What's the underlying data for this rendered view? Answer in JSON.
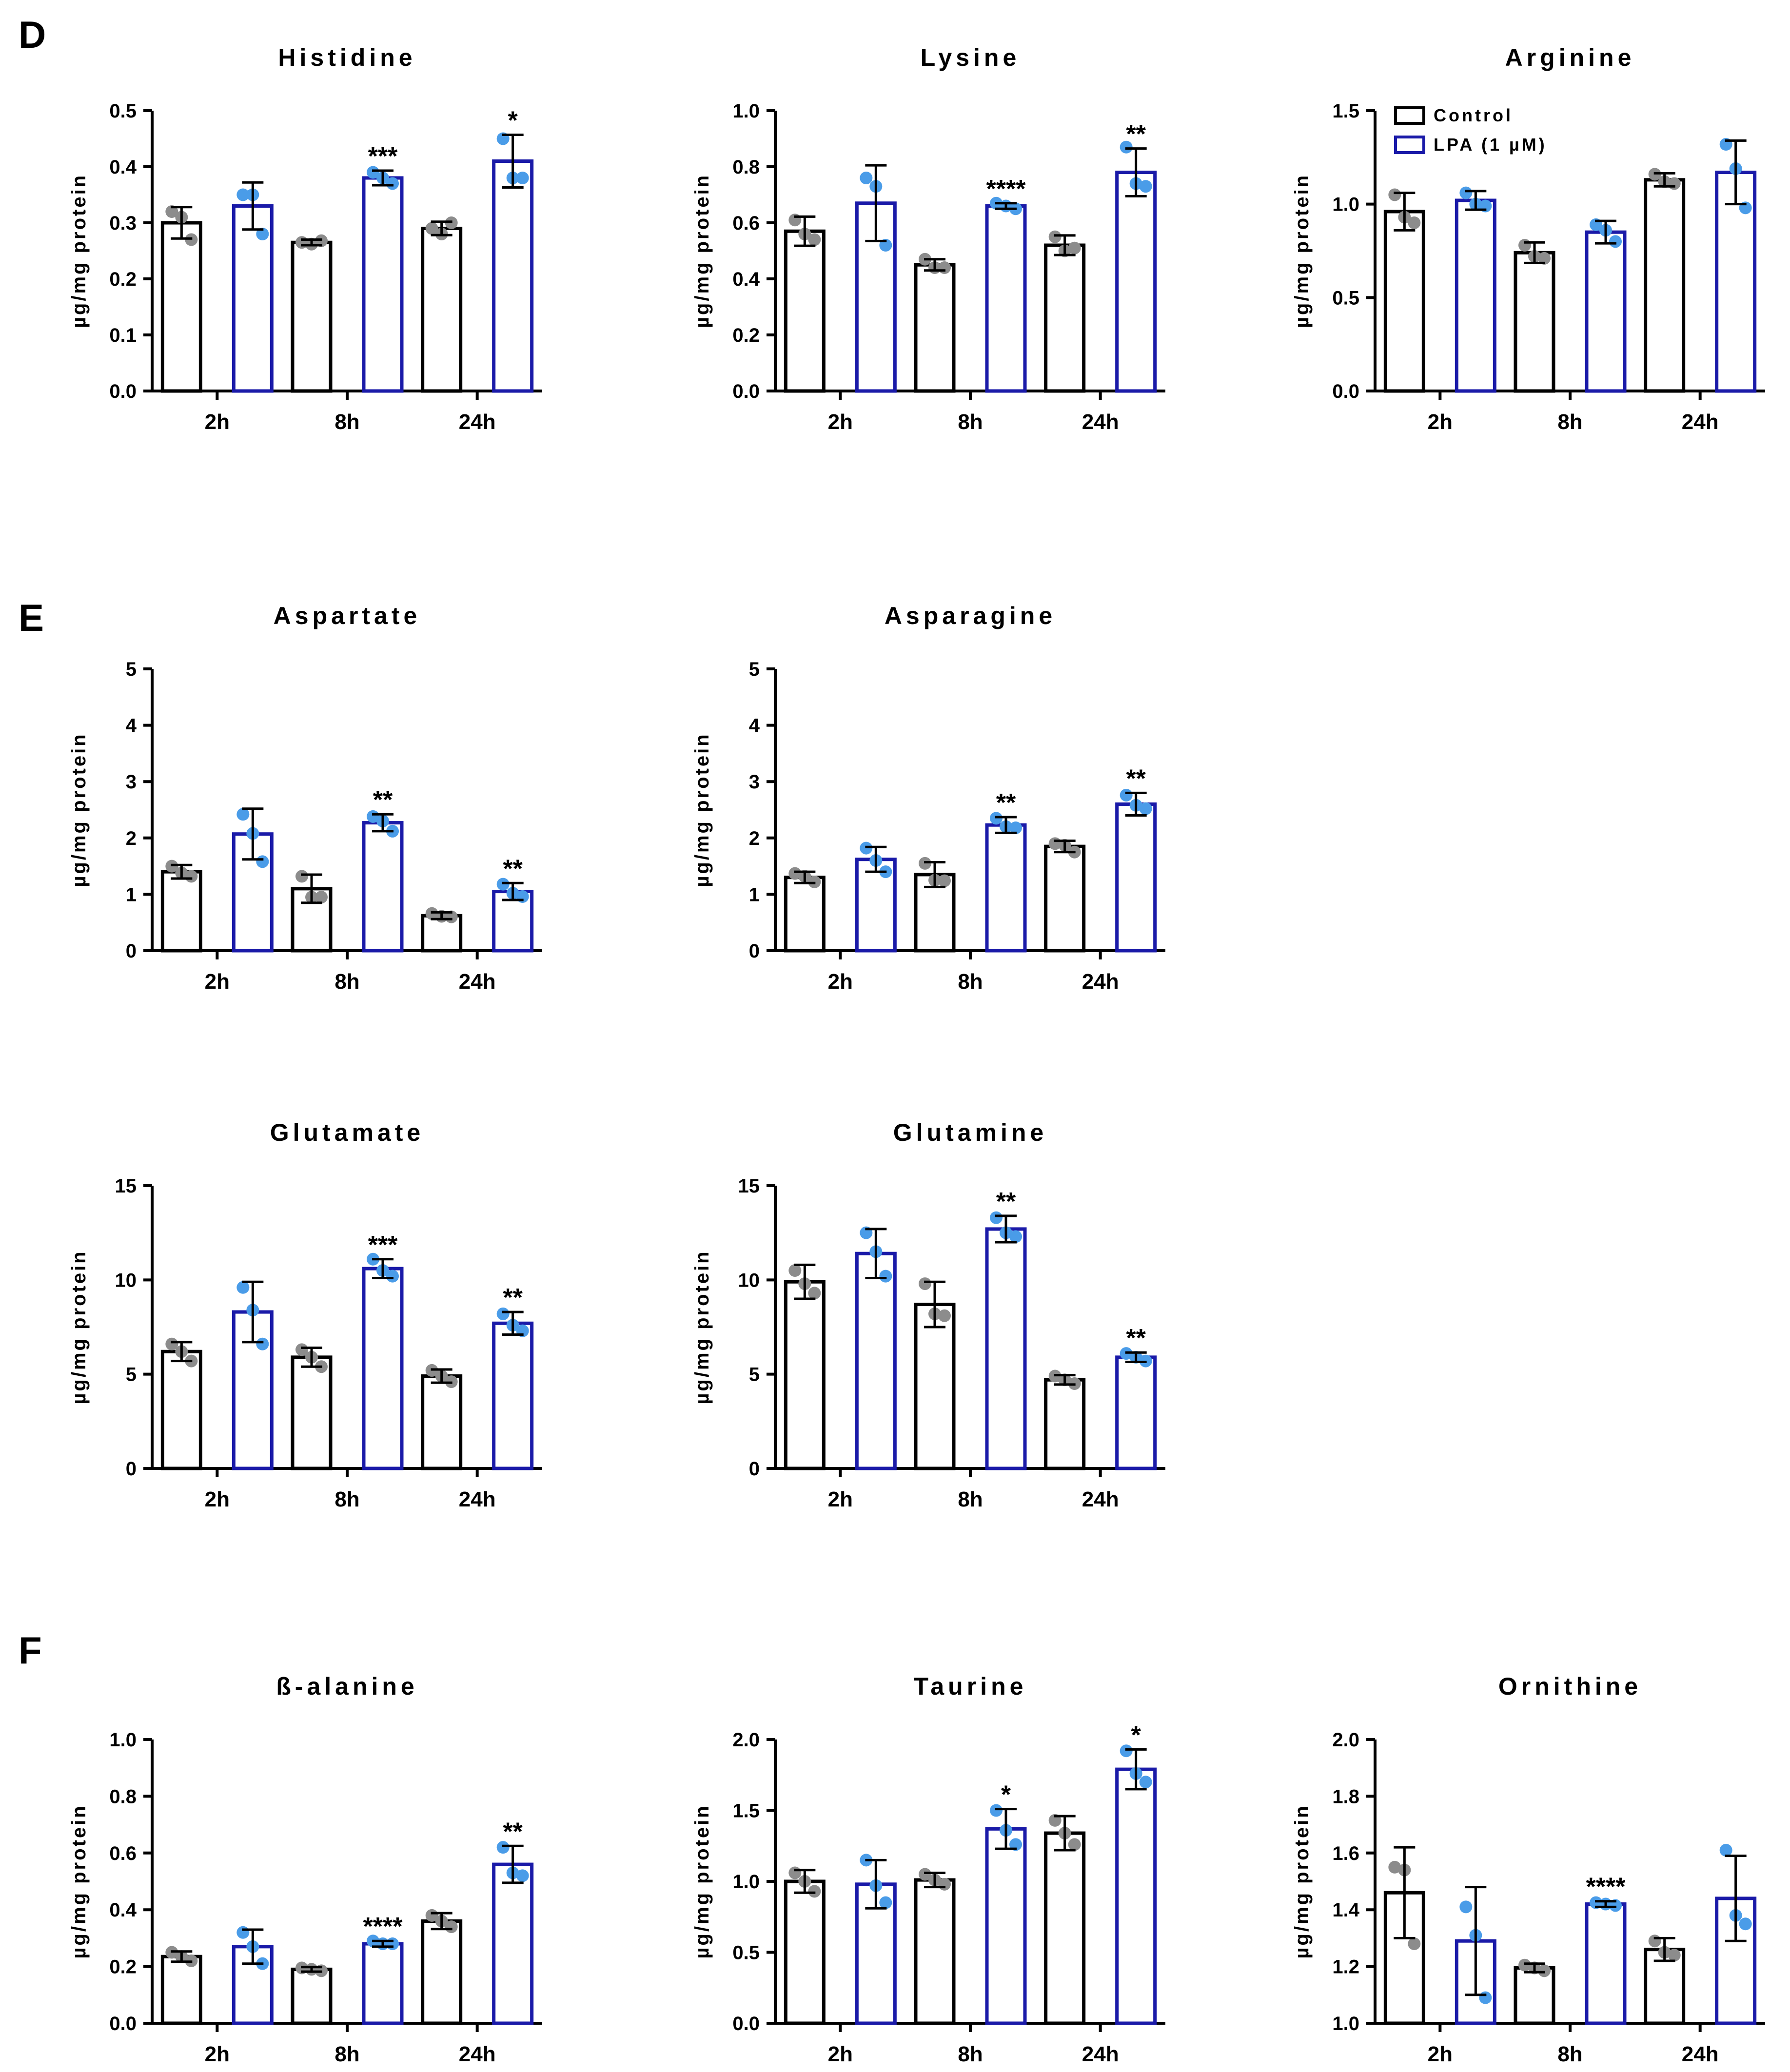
{
  "panels": [
    "D",
    "E",
    "F"
  ],
  "legend": {
    "entries": [
      {
        "label": "Control",
        "color": "#000000"
      },
      {
        "label": "LPA (1 µM)",
        "color": "#1a1aa8"
      }
    ]
  },
  "colors": {
    "control": "#000000",
    "lpa": "#1a1aa8",
    "control_dot": "#8c8c8c",
    "lpa_dot": "#4a9ce8",
    "text": "#000000"
  },
  "chart_data": [
    {
      "type": "bar",
      "panel": "D",
      "title": "Histidine",
      "ylabel": "µg/mg protein",
      "categories": [
        "2h",
        "8h",
        "24h"
      ],
      "ylim": [
        0,
        0.5
      ],
      "yticks": [
        "0.0",
        "0.1",
        "0.2",
        "0.3",
        "0.4",
        "0.5"
      ],
      "series": [
        {
          "name": "Control",
          "values": [
            0.3,
            0.265,
            0.29
          ],
          "errors": [
            0.028,
            0.005,
            0.012
          ],
          "points": [
            [
              0.32,
              0.31,
              0.27
            ],
            [
              0.265,
              0.262,
              0.268
            ],
            [
              0.29,
              0.28,
              0.3
            ]
          ]
        },
        {
          "name": "LPA (1 µM)",
          "values": [
            0.33,
            0.38,
            0.41
          ],
          "errors": [
            0.042,
            0.013,
            0.047
          ],
          "points": [
            [
              0.35,
              0.35,
              0.28
            ],
            [
              0.39,
              0.38,
              0.37
            ],
            [
              0.45,
              0.38,
              0.38
            ]
          ]
        }
      ],
      "significance": [
        "",
        "***",
        "*"
      ]
    },
    {
      "type": "bar",
      "panel": "D",
      "title": "Lysine",
      "ylabel": "µg/mg protein",
      "categories": [
        "2h",
        "8h",
        "24h"
      ],
      "ylim": [
        0,
        1.0
      ],
      "yticks": [
        "0.0",
        "0.2",
        "0.4",
        "0.6",
        "0.8",
        "1.0"
      ],
      "series": [
        {
          "name": "Control",
          "values": [
            0.57,
            0.45,
            0.52
          ],
          "errors": [
            0.052,
            0.02,
            0.035
          ],
          "points": [
            [
              0.61,
              0.56,
              0.54
            ],
            [
              0.47,
              0.44,
              0.44
            ],
            [
              0.55,
              0.5,
              0.51
            ]
          ]
        },
        {
          "name": "LPA (1 µM)",
          "values": [
            0.67,
            0.66,
            0.78
          ],
          "errors": [
            0.135,
            0.01,
            0.085
          ],
          "points": [
            [
              0.76,
              0.73,
              0.52
            ],
            [
              0.67,
              0.66,
              0.65
            ],
            [
              0.87,
              0.74,
              0.73
            ]
          ]
        }
      ],
      "significance": [
        "",
        "****",
        "**"
      ]
    },
    {
      "type": "bar",
      "panel": "D",
      "title": "Arginine",
      "ylabel": "µg/mg protein",
      "categories": [
        "2h",
        "8h",
        "24h"
      ],
      "ylim": [
        0,
        1.5
      ],
      "yticks": [
        "0.0",
        "0.5",
        "1.0",
        "1.5"
      ],
      "series": [
        {
          "name": "Control",
          "values": [
            0.96,
            0.74,
            1.13
          ],
          "errors": [
            0.1,
            0.055,
            0.035
          ],
          "points": [
            [
              1.05,
              0.93,
              0.9
            ],
            [
              0.78,
              0.72,
              0.71
            ],
            [
              1.16,
              1.12,
              1.11
            ]
          ]
        },
        {
          "name": "LPA (1 µM)",
          "values": [
            1.02,
            0.85,
            1.17
          ],
          "errors": [
            0.05,
            0.06,
            0.17
          ],
          "points": [
            [
              1.06,
              1.0,
              0.99
            ],
            [
              0.89,
              0.86,
              0.8
            ],
            [
              1.32,
              1.19,
              0.98
            ]
          ]
        }
      ],
      "significance": [
        "",
        "",
        ""
      ]
    },
    {
      "type": "bar",
      "panel": "E",
      "title": "Aspartate",
      "ylabel": "µg/mg protein",
      "categories": [
        "2h",
        "8h",
        "24h"
      ],
      "ylim": [
        0,
        5
      ],
      "yticks": [
        "0",
        "1",
        "2",
        "3",
        "4",
        "5"
      ],
      "series": [
        {
          "name": "Control",
          "values": [
            1.4,
            1.1,
            0.62
          ],
          "errors": [
            0.12,
            0.25,
            0.06
          ],
          "points": [
            [
              1.5,
              1.38,
              1.32
            ],
            [
              1.32,
              0.95,
              0.95
            ],
            [
              0.66,
              0.61,
              0.6
            ]
          ]
        },
        {
          "name": "LPA (1 µM)",
          "values": [
            2.07,
            2.27,
            1.05
          ],
          "errors": [
            0.45,
            0.15,
            0.15
          ],
          "points": [
            [
              2.42,
              2.08,
              1.58
            ],
            [
              2.38,
              2.3,
              2.12
            ],
            [
              1.18,
              1.02,
              0.96
            ]
          ]
        }
      ],
      "significance": [
        "",
        "**",
        "**"
      ]
    },
    {
      "type": "bar",
      "panel": "E",
      "title": "Asparagine",
      "ylabel": "µg/mg protein",
      "categories": [
        "2h",
        "8h",
        "24h"
      ],
      "ylim": [
        0,
        5
      ],
      "yticks": [
        "0",
        "1",
        "2",
        "3",
        "4",
        "5"
      ],
      "series": [
        {
          "name": "Control",
          "values": [
            1.3,
            1.35,
            1.85
          ],
          "errors": [
            0.1,
            0.22,
            0.1
          ],
          "points": [
            [
              1.37,
              1.32,
              1.22
            ],
            [
              1.55,
              1.25,
              1.24
            ],
            [
              1.9,
              1.87,
              1.75
            ]
          ]
        },
        {
          "name": "LPA (1 µM)",
          "values": [
            1.62,
            2.23,
            2.6
          ],
          "errors": [
            0.22,
            0.14,
            0.2
          ],
          "points": [
            [
              1.82,
              1.6,
              1.4
            ],
            [
              2.35,
              2.2,
              2.18
            ],
            [
              2.76,
              2.58,
              2.52
            ]
          ]
        }
      ],
      "significance": [
        "",
        "**",
        "**"
      ]
    },
    {
      "type": "bar",
      "panel": "E",
      "title": "Glutamate",
      "ylabel": "µg/mg protein",
      "categories": [
        "2h",
        "8h",
        "24h"
      ],
      "ylim": [
        0,
        15
      ],
      "yticks": [
        "0",
        "5",
        "10",
        "15"
      ],
      "series": [
        {
          "name": "Control",
          "values": [
            6.2,
            5.9,
            4.9
          ],
          "errors": [
            0.5,
            0.5,
            0.35
          ],
          "points": [
            [
              6.6,
              6.2,
              5.7
            ],
            [
              6.3,
              5.9,
              5.4
            ],
            [
              5.2,
              4.9,
              4.6
            ]
          ]
        },
        {
          "name": "LPA (1 µM)",
          "values": [
            8.3,
            10.6,
            7.7
          ],
          "errors": [
            1.6,
            0.5,
            0.6
          ],
          "points": [
            [
              9.6,
              8.4,
              6.6
            ],
            [
              11.1,
              10.5,
              10.2
            ],
            [
              8.2,
              7.6,
              7.3
            ]
          ]
        }
      ],
      "significance": [
        "",
        "***",
        "**"
      ]
    },
    {
      "type": "bar",
      "panel": "E",
      "title": "Glutamine",
      "ylabel": "µg/mg protein",
      "categories": [
        "2h",
        "8h",
        "24h"
      ],
      "ylim": [
        0,
        15
      ],
      "yticks": [
        "0",
        "5",
        "10",
        "15"
      ],
      "series": [
        {
          "name": "Control",
          "values": [
            9.9,
            8.7,
            4.7
          ],
          "errors": [
            0.9,
            1.2,
            0.25
          ],
          "points": [
            [
              10.5,
              9.8,
              9.3
            ],
            [
              9.8,
              8.2,
              8.1
            ],
            [
              4.9,
              4.7,
              4.5
            ]
          ]
        },
        {
          "name": "LPA (1 µM)",
          "values": [
            11.4,
            12.7,
            5.9
          ],
          "errors": [
            1.3,
            0.7,
            0.25
          ],
          "points": [
            [
              12.5,
              11.5,
              10.2
            ],
            [
              13.3,
              12.5,
              12.3
            ],
            [
              6.1,
              5.9,
              5.7
            ]
          ]
        }
      ],
      "significance": [
        "",
        "**",
        "**"
      ]
    },
    {
      "type": "bar",
      "panel": "F",
      "title": "ß-alanine",
      "ylabel": "µg/mg protein",
      "categories": [
        "2h",
        "8h",
        "24h"
      ],
      "ylim": [
        0,
        1.0
      ],
      "yticks": [
        "0.0",
        "0.2",
        "0.4",
        "0.6",
        "0.8",
        "1.0"
      ],
      "series": [
        {
          "name": "Control",
          "values": [
            0.235,
            0.19,
            0.36
          ],
          "errors": [
            0.018,
            0.008,
            0.028
          ],
          "points": [
            [
              0.25,
              0.235,
              0.22
            ],
            [
              0.195,
              0.19,
              0.185
            ],
            [
              0.38,
              0.36,
              0.34
            ]
          ]
        },
        {
          "name": "LPA (1 µM)",
          "values": [
            0.27,
            0.28,
            0.56
          ],
          "errors": [
            0.06,
            0.01,
            0.065
          ],
          "points": [
            [
              0.32,
              0.27,
              0.21
            ],
            [
              0.29,
              0.28,
              0.28
            ],
            [
              0.62,
              0.53,
              0.52
            ]
          ]
        }
      ],
      "significance": [
        "",
        "****",
        "**"
      ]
    },
    {
      "type": "bar",
      "panel": "F",
      "title": "Taurine",
      "ylabel": "µg/mg protein",
      "categories": [
        "2h",
        "8h",
        "24h"
      ],
      "ylim": [
        0,
        2.0
      ],
      "yticks": [
        "0.0",
        "0.5",
        "1.0",
        "1.5",
        "2.0"
      ],
      "series": [
        {
          "name": "Control",
          "values": [
            1.0,
            1.01,
            1.34
          ],
          "errors": [
            0.08,
            0.05,
            0.12
          ],
          "points": [
            [
              1.06,
              1.0,
              0.93
            ],
            [
              1.05,
              1.01,
              0.98
            ],
            [
              1.43,
              1.34,
              1.26
            ]
          ]
        },
        {
          "name": "LPA (1 µM)",
          "values": [
            0.98,
            1.37,
            1.79
          ],
          "errors": [
            0.17,
            0.14,
            0.14
          ],
          "points": [
            [
              1.15,
              0.97,
              0.85
            ],
            [
              1.5,
              1.36,
              1.26
            ],
            [
              1.92,
              1.76,
              1.7
            ]
          ]
        }
      ],
      "significance": [
        "",
        "*",
        "*"
      ]
    },
    {
      "type": "bar",
      "panel": "F",
      "title": "Ornithine",
      "ylabel": "µg/mg protein",
      "categories": [
        "2h",
        "8h",
        "24h"
      ],
      "ylim": [
        1.0,
        2.0
      ],
      "yticks": [
        "1.0",
        "1.2",
        "1.4",
        "1.6",
        "1.8",
        "2.0"
      ],
      "series": [
        {
          "name": "Control",
          "values": [
            1.46,
            1.195,
            1.26
          ],
          "errors": [
            0.16,
            0.015,
            0.04
          ],
          "points": [
            [
              1.55,
              1.54,
              1.28
            ],
            [
              1.205,
              1.195,
              1.185
            ],
            [
              1.29,
              1.25,
              1.24
            ]
          ]
        },
        {
          "name": "LPA (1 µM)",
          "values": [
            1.29,
            1.42,
            1.44
          ],
          "errors": [
            0.19,
            0.01,
            0.15
          ],
          "points": [
            [
              1.41,
              1.31,
              1.09
            ],
            [
              1.425,
              1.42,
              1.415
            ],
            [
              1.61,
              1.38,
              1.35
            ]
          ]
        }
      ],
      "significance": [
        "",
        "****",
        ""
      ]
    }
  ]
}
